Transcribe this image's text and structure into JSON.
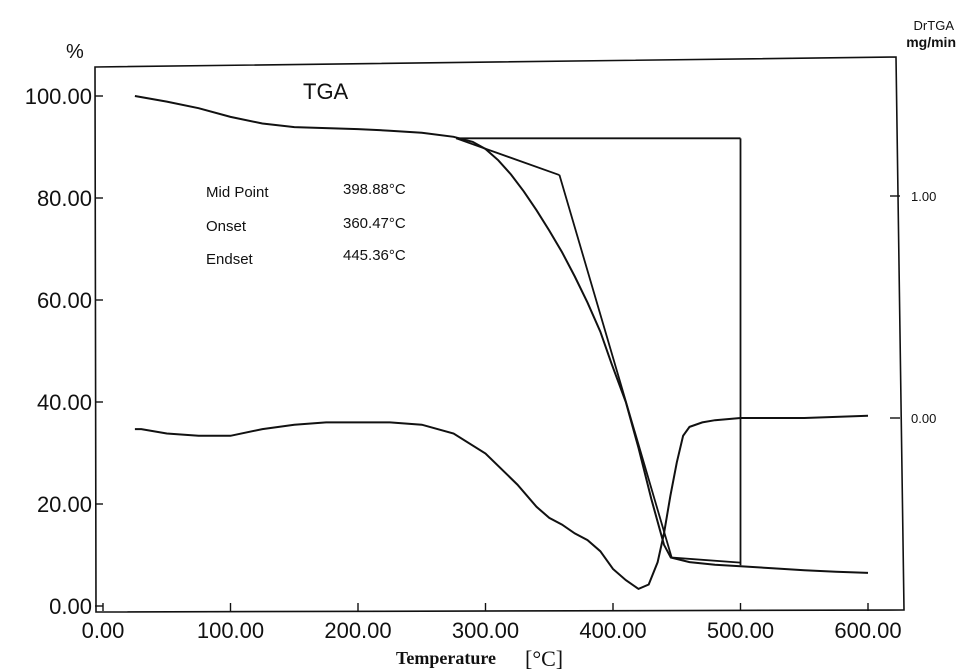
{
  "chart_data": {
    "type": "line",
    "title": "TGA",
    "xlabel": "Temperature",
    "xlabel_unit": "[°C]",
    "ylabel_left": "%",
    "ylabel_right_top": "DrTGA",
    "ylabel_right_unit": "mg/min",
    "xlim": [
      0,
      600
    ],
    "ylim": [
      0,
      100
    ],
    "y2lim": [
      -0.75,
      1.6
    ],
    "grid": false,
    "x_ticks": [
      "0.00",
      "100.00",
      "200.00",
      "300.00",
      "400.00",
      "500.00",
      "600.00"
    ],
    "y_ticks": [
      "0.00",
      "20.00",
      "40.00",
      "60.00",
      "80.00",
      "100.00"
    ],
    "y2_ticks": [
      "0.00",
      "1.00"
    ],
    "annotations": [
      {
        "label": "Mid Point",
        "value": "398.88°C"
      },
      {
        "label": "Onset",
        "value": "360.47°C"
      },
      {
        "label": "Endset",
        "value": "445.36°C"
      }
    ],
    "series": [
      {
        "axis": "left",
        "x": [
          25,
          50,
          75,
          100,
          125,
          150,
          175,
          200,
          225,
          250,
          275,
          290,
          300,
          310,
          320,
          330,
          340,
          350,
          360,
          370,
          380,
          390,
          398.88,
          410,
          420,
          430,
          440,
          445.36,
          460,
          480,
          500,
          525,
          550,
          575,
          600
        ],
        "values": [
          100.0,
          98.9,
          97.6,
          95.9,
          94.6,
          93.9,
          93.7,
          93.5,
          93.2,
          92.8,
          92.0,
          91.0,
          89.6,
          87.4,
          84.6,
          81.3,
          77.6,
          73.6,
          69.4,
          64.6,
          59.5,
          53.8,
          47.5,
          40.0,
          31.0,
          21.0,
          12.0,
          9.5,
          8.6,
          8.1,
          7.8,
          7.4,
          7.0,
          6.7,
          6.5
        ]
      },
      {
        "axis": "right",
        "x": [
          25,
          30,
          50,
          75,
          100,
          125,
          150,
          175,
          200,
          225,
          250,
          275,
          300,
          325,
          340,
          350,
          360,
          370,
          380,
          390,
          400,
          410,
          420,
          428,
          435,
          440,
          445,
          450,
          455,
          460,
          470,
          480,
          500,
          550,
          600
        ],
        "values": [
          -0.05,
          -0.05,
          -0.07,
          -0.08,
          -0.08,
          -0.05,
          -0.03,
          -0.02,
          -0.02,
          -0.02,
          -0.03,
          -0.07,
          -0.16,
          -0.3,
          -0.4,
          -0.45,
          -0.48,
          -0.52,
          -0.55,
          -0.6,
          -0.68,
          -0.73,
          -0.77,
          -0.75,
          -0.65,
          -0.52,
          -0.35,
          -0.2,
          -0.08,
          -0.04,
          -0.02,
          -0.01,
          0.0,
          0.0,
          0.01
        ]
      }
    ],
    "construction_lines": [
      {
        "x": [
          277,
          500
        ],
        "values": [
          91.7,
          91.7
        ]
      },
      {
        "x": [
          500,
          500
        ],
        "values": [
          91.7,
          8.0
        ]
      },
      {
        "x": [
          277,
          358
        ],
        "values": [
          91.7,
          84.5
        ]
      },
      {
        "x": [
          358,
          446
        ],
        "values": [
          84.5,
          9.5
        ]
      },
      {
        "x": [
          446,
          500
        ],
        "values": [
          9.5,
          8.5
        ]
      }
    ]
  }
}
